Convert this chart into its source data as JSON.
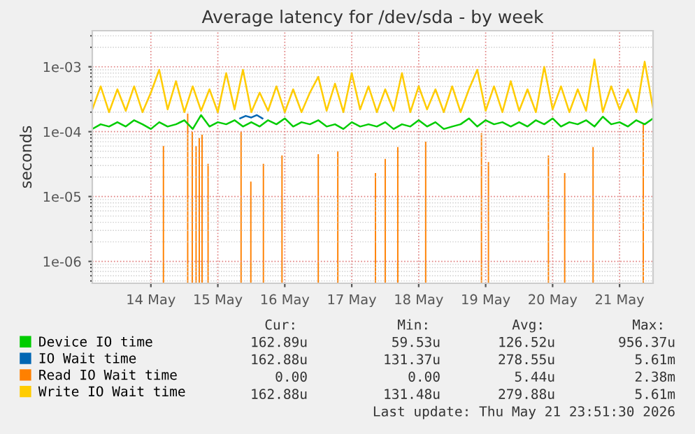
{
  "chart_data": {
    "type": "line",
    "title": "Average latency for /dev/sda - by week",
    "ylabel": "seconds",
    "log": "y",
    "grid": true,
    "legend": "bottom",
    "marker": "none",
    "line_style": "solid",
    "xlim": [
      "2026-05-13T15:00",
      "2026-05-22T00:00"
    ],
    "xticks": [
      {
        "value": "2026-05-14T12:00",
        "label": "14 May"
      },
      {
        "value": "2026-05-15T12:00",
        "label": "15 May"
      },
      {
        "value": "2026-05-16T12:00",
        "label": "16 May"
      },
      {
        "value": "2026-05-17T12:00",
        "label": "17 May"
      },
      {
        "value": "2026-05-18T12:00",
        "label": "18 May"
      },
      {
        "value": "2026-05-19T12:00",
        "label": "19 May"
      },
      {
        "value": "2026-05-20T12:00",
        "label": "20 May"
      },
      {
        "value": "2026-05-21T12:00",
        "label": "21 May"
      }
    ],
    "ylim": [
      4.6e-07,
      0.0036
    ],
    "yticks": [
      {
        "value": 1e-06,
        "label": "1e-06"
      },
      {
        "value": 1e-05,
        "label": "1e-05"
      },
      {
        "value": 0.0001,
        "label": "1e-04"
      },
      {
        "value": 0.001,
        "label": "1e-03"
      }
    ],
    "x": [
      "2026-05-13T15:00",
      "2026-05-13T18:00",
      "2026-05-13T21:00",
      "2026-05-14T00:00",
      "2026-05-14T03:00",
      "2026-05-14T06:00",
      "2026-05-14T09:00",
      "2026-05-14T12:00",
      "2026-05-14T15:00",
      "2026-05-14T18:00",
      "2026-05-14T21:00",
      "2026-05-15T00:00",
      "2026-05-15T03:00",
      "2026-05-15T06:00",
      "2026-05-15T09:00",
      "2026-05-15T12:00",
      "2026-05-15T15:00",
      "2026-05-15T18:00",
      "2026-05-15T21:00",
      "2026-05-16T00:00",
      "2026-05-16T03:00",
      "2026-05-16T06:00",
      "2026-05-16T09:00",
      "2026-05-16T12:00",
      "2026-05-16T15:00",
      "2026-05-16T18:00",
      "2026-05-16T21:00",
      "2026-05-17T00:00",
      "2026-05-17T03:00",
      "2026-05-17T06:00",
      "2026-05-17T09:00",
      "2026-05-17T12:00",
      "2026-05-17T15:00",
      "2026-05-17T18:00",
      "2026-05-17T21:00",
      "2026-05-18T00:00",
      "2026-05-18T03:00",
      "2026-05-18T06:00",
      "2026-05-18T09:00",
      "2026-05-18T12:00",
      "2026-05-18T15:00",
      "2026-05-18T18:00",
      "2026-05-18T21:00",
      "2026-05-19T00:00",
      "2026-05-19T03:00",
      "2026-05-19T06:00",
      "2026-05-19T09:00",
      "2026-05-19T12:00",
      "2026-05-19T15:00",
      "2026-05-19T18:00",
      "2026-05-19T21:00",
      "2026-05-20T00:00",
      "2026-05-20T03:00",
      "2026-05-20T06:00",
      "2026-05-20T09:00",
      "2026-05-20T12:00",
      "2026-05-20T15:00",
      "2026-05-20T18:00",
      "2026-05-20T21:00",
      "2026-05-21T00:00",
      "2026-05-21T03:00",
      "2026-05-21T06:00",
      "2026-05-21T09:00",
      "2026-05-21T12:00",
      "2026-05-21T15:00",
      "2026-05-21T18:00",
      "2026-05-21T21:00",
      "2026-05-22T00:00"
    ],
    "series": [
      {
        "name": "Device IO time",
        "color": "#00cc00",
        "values": [
          0.00011,
          0.00013,
          0.00012,
          0.00014,
          0.00012,
          0.00015,
          0.00013,
          0.00011,
          0.00014,
          0.00012,
          0.00013,
          0.00015,
          0.00011,
          0.00018,
          0.00012,
          0.00014,
          0.00013,
          0.00015,
          0.00012,
          0.00014,
          0.00012,
          0.00015,
          0.00013,
          0.00016,
          0.00012,
          0.00014,
          0.00013,
          0.00015,
          0.00012,
          0.00013,
          0.00011,
          0.00014,
          0.00012,
          0.00013,
          0.00012,
          0.00014,
          0.00011,
          0.00013,
          0.00012,
          0.00015,
          0.00012,
          0.00014,
          0.00011,
          0.00012,
          0.00013,
          0.00016,
          0.00012,
          0.00015,
          0.00013,
          0.00014,
          0.00012,
          0.00014,
          0.00012,
          0.00015,
          0.00013,
          0.00016,
          0.00012,
          0.00014,
          0.00013,
          0.00015,
          0.00012,
          0.00017,
          0.00013,
          0.00014,
          0.00012,
          0.00015,
          0.00013,
          0.00016
        ]
      },
      {
        "name": "IO Wait time",
        "color": "#0066b3",
        "x": [
          "2026-05-15T20:00",
          "2026-05-15T22:00",
          "2026-05-16T00:00",
          "2026-05-16T02:00",
          "2026-05-16T04:00"
        ],
        "values": [
          0.00016,
          0.000175,
          0.000165,
          0.00018,
          0.00016
        ]
      },
      {
        "name": "Read IO Wait time",
        "color": "#ff8000",
        "type": "bar",
        "x": [
          "2026-05-14T16:30",
          "2026-05-15T01:12",
          "2026-05-15T02:50",
          "2026-05-15T04:12",
          "2026-05-15T05:21",
          "2026-05-15T06:21",
          "2026-05-15T08:30",
          "2026-05-15T20:20",
          "2026-05-15T23:50",
          "2026-05-16T04:20",
          "2026-05-16T11:00",
          "2026-05-17T00:00",
          "2026-05-17T07:00",
          "2026-05-17T20:30",
          "2026-05-18T00:00",
          "2026-05-18T04:30",
          "2026-05-18T14:30",
          "2026-05-19T10:30",
          "2026-05-19T13:00",
          "2026-05-20T10:30",
          "2026-05-20T16:20",
          "2026-05-21T02:30",
          "2026-05-21T20:30"
        ],
        "values": [
          6e-05,
          0.00019,
          0.0001,
          6e-05,
          8e-05,
          9e-05,
          3.2e-05,
          0.0001,
          1.7e-05,
          3.2e-05,
          4.3e-05,
          4.5e-05,
          5e-05,
          2.3e-05,
          3.8e-05,
          5.8e-05,
          7e-05,
          9.5e-05,
          3.4e-05,
          4.3e-05,
          2.3e-05,
          5.8e-05,
          0.00013
        ]
      },
      {
        "name": "Write IO Wait time",
        "color": "#ffcc00",
        "values": [
          0.00022,
          0.0005,
          0.0002,
          0.00045,
          0.00021,
          0.0005,
          0.0002,
          0.0004,
          0.0009,
          0.00022,
          0.0006,
          0.0002,
          0.0005,
          0.00021,
          0.00045,
          0.0002,
          0.0008,
          0.00022,
          0.0009,
          0.0002,
          0.0004,
          0.00021,
          0.0005,
          0.0002,
          0.00045,
          0.0002,
          0.0004,
          0.0007,
          0.00021,
          0.00055,
          0.0002,
          0.0008,
          0.00022,
          0.0005,
          0.0002,
          0.00045,
          0.00021,
          0.0008,
          0.0002,
          0.0005,
          0.00022,
          0.00045,
          0.0002,
          0.0005,
          0.0002,
          0.00045,
          0.0009,
          0.00021,
          0.0005,
          0.0002,
          0.0006,
          0.00021,
          0.00045,
          0.0002,
          0.001,
          0.00022,
          0.0005,
          0.0002,
          0.00045,
          0.00021,
          0.0013,
          0.0002,
          0.0005,
          0.00022,
          0.00045,
          0.0002,
          0.0012,
          0.00023
        ]
      }
    ],
    "annotations": [
      "Cur:",
      "Min:",
      "Avg:",
      "Max:",
      "162.89u",
      "59.53u",
      "126.52u",
      "956.37u",
      "162.88u",
      "131.37u",
      "278.55u",
      "5.61m",
      "0.00",
      "0.00",
      "5.44u",
      "2.38m",
      "162.88u",
      "131.48u",
      "279.88u",
      "5.61m",
      "Last update: Thu May 21 23:51:30 2026"
    ]
  }
}
